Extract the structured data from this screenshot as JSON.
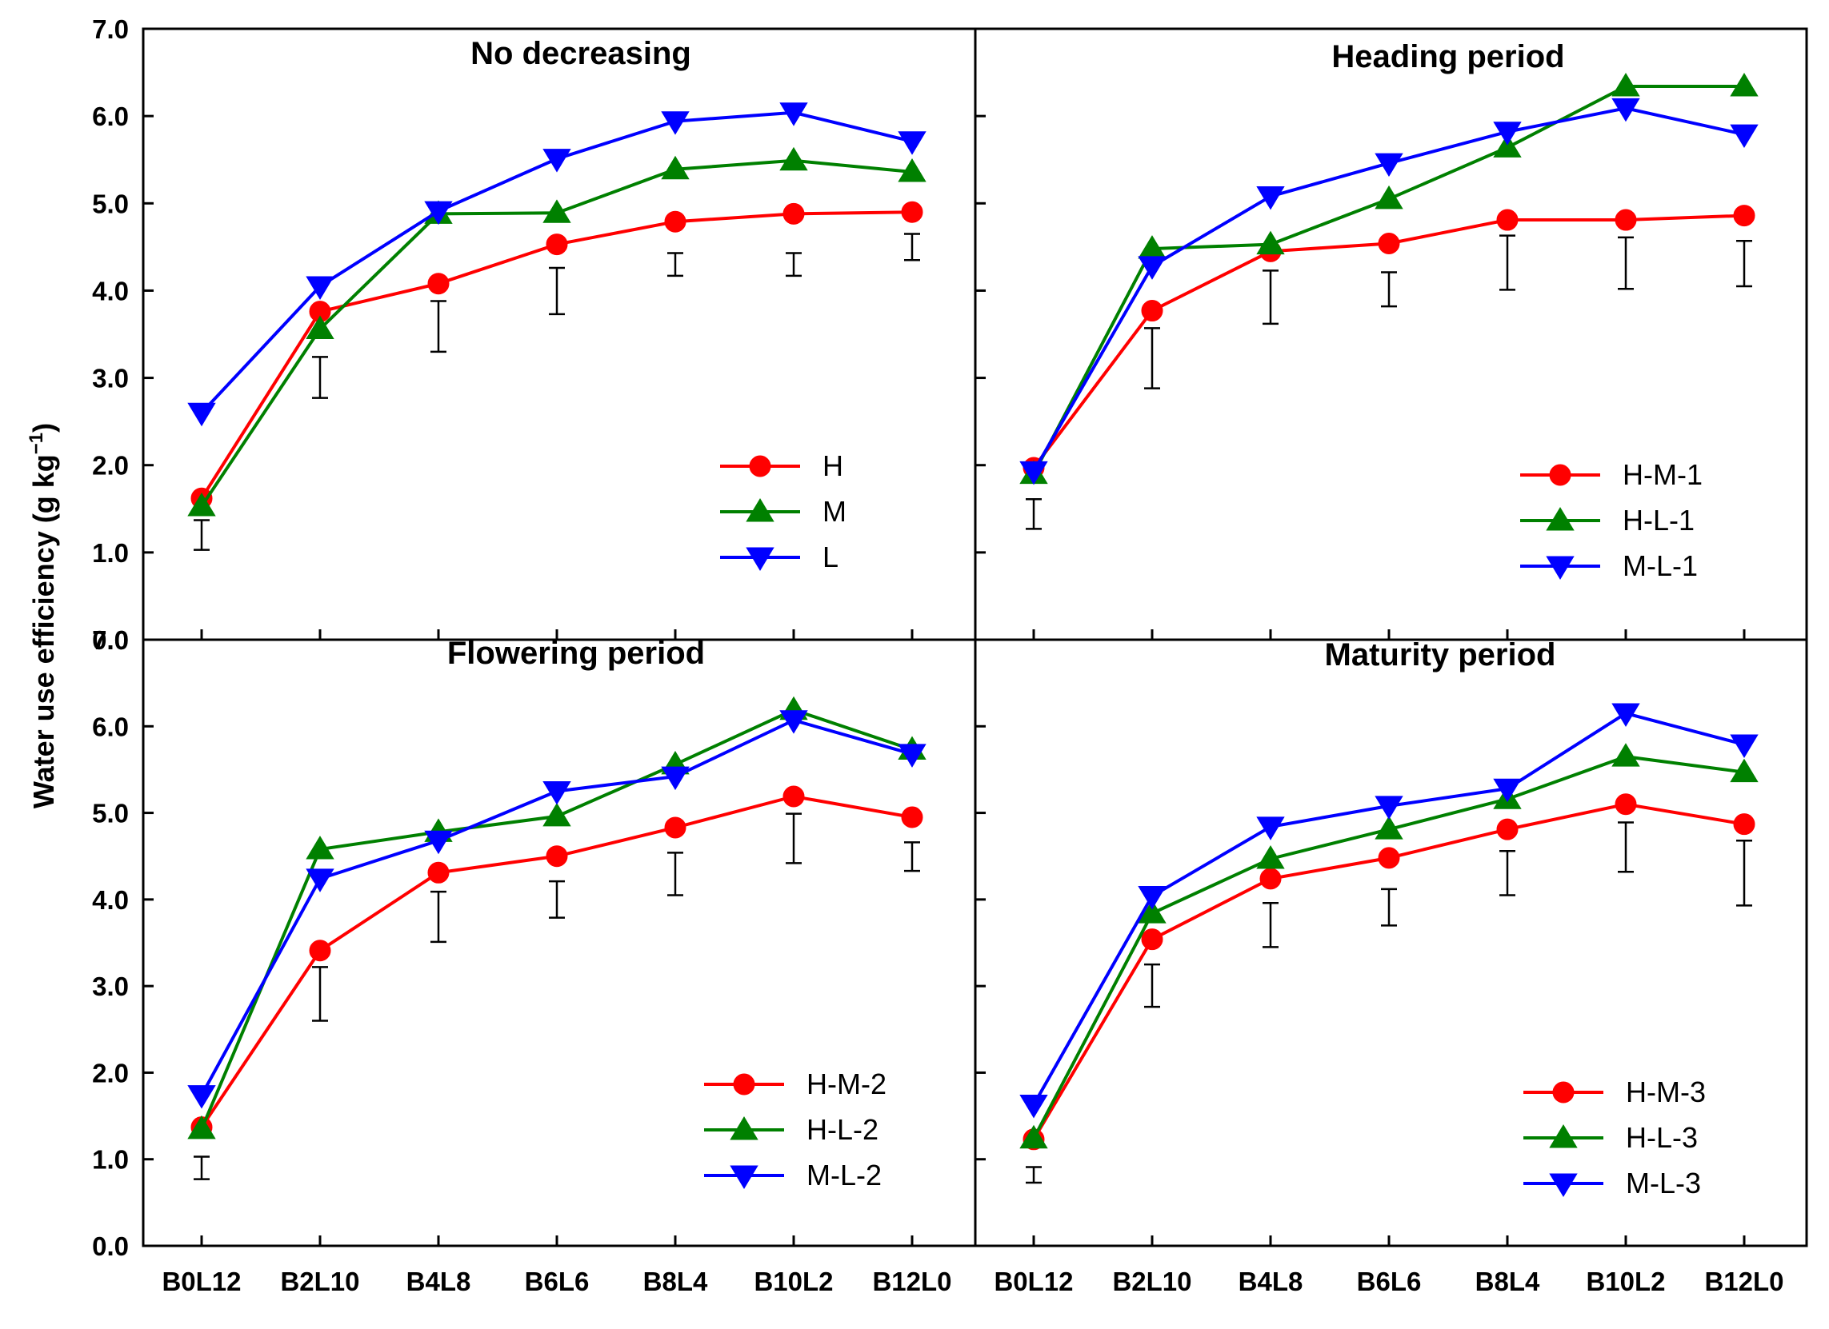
{
  "figure": {
    "ylabel": "Water use efficiency (g kg",
    "ylabel_sup": "−1",
    "ylabel_close": ")"
  },
  "chart_data": [
    {
      "type": "line",
      "title": "No decreasing",
      "categories": [
        "B0L12",
        "B2L10",
        "B4L8",
        "B6L6",
        "B8L4",
        "B10L2",
        "B12L0"
      ],
      "ylim": [
        0,
        7
      ],
      "yticks": [
        "0.0",
        "1.0",
        "2.0",
        "3.0",
        "4.0",
        "5.0",
        "6.0",
        "7.0"
      ],
      "legend_position": "bottom-right",
      "series": [
        {
          "name": "H",
          "color": "#ff0000",
          "marker": "circle",
          "values": [
            1.62,
            3.76,
            4.08,
            4.53,
            4.79,
            4.88,
            4.9
          ]
        },
        {
          "name": "M",
          "color": "#008000",
          "marker": "triangle-up",
          "values": [
            1.53,
            3.56,
            4.88,
            4.89,
            5.39,
            5.49,
            5.36
          ]
        },
        {
          "name": "L",
          "color": "#0000ff",
          "marker": "triangle-down",
          "values": [
            2.6,
            4.05,
            4.91,
            5.51,
            5.94,
            6.04,
            5.71
          ]
        }
      ],
      "error_bars": [
        {
          "low": 1.03,
          "high": 1.37
        },
        {
          "low": 2.77,
          "high": 3.24
        },
        {
          "low": 3.3,
          "high": 3.88
        },
        {
          "low": 3.73,
          "high": 4.26
        },
        {
          "low": 4.17,
          "high": 4.43
        },
        {
          "low": 4.17,
          "high": 4.43
        },
        {
          "low": 4.35,
          "high": 4.65
        }
      ]
    },
    {
      "type": "line",
      "title": "Heading period",
      "categories": [
        "B0L12",
        "B2L10",
        "B4L8",
        "B6L6",
        "B8L4",
        "B10L2",
        "B12L0"
      ],
      "ylim": [
        0,
        7
      ],
      "yticks": [
        "0.0",
        "1.0",
        "2.0",
        "3.0",
        "4.0",
        "5.0",
        "6.0",
        "7.0"
      ],
      "legend_position": "bottom-right",
      "series": [
        {
          "name": "H-M-1",
          "color": "#ff0000",
          "marker": "circle",
          "values": [
            1.97,
            3.77,
            4.45,
            4.54,
            4.81,
            4.81,
            4.86
          ]
        },
        {
          "name": "H-L-1",
          "color": "#008000",
          "marker": "triangle-up",
          "values": [
            1.9,
            4.48,
            4.53,
            5.05,
            5.64,
            6.34,
            6.34
          ]
        },
        {
          "name": "M-L-1",
          "color": "#0000ff",
          "marker": "triangle-down",
          "values": [
            1.93,
            4.28,
            5.08,
            5.46,
            5.82,
            6.09,
            5.79
          ]
        }
      ],
      "error_bars": [
        {
          "low": 1.27,
          "high": 1.61
        },
        {
          "low": 2.88,
          "high": 3.57
        },
        {
          "low": 3.62,
          "high": 4.23
        },
        {
          "low": 3.82,
          "high": 4.21
        },
        {
          "low": 4.01,
          "high": 4.63
        },
        {
          "low": 4.02,
          "high": 4.61
        },
        {
          "low": 4.05,
          "high": 4.57
        }
      ]
    },
    {
      "type": "line",
      "title": "Flowering period",
      "categories": [
        "B0L12",
        "B2L10",
        "B4L8",
        "B6L6",
        "B8L4",
        "B10L2",
        "B12L0"
      ],
      "ylim": [
        0,
        7
      ],
      "yticks": [
        "0.0",
        "1.0",
        "2.0",
        "3.0",
        "4.0",
        "5.0",
        "6.0",
        "7.0"
      ],
      "legend_position": "bottom-right",
      "series": [
        {
          "name": "H-M-2",
          "color": "#ff0000",
          "marker": "circle",
          "values": [
            1.37,
            3.41,
            4.31,
            4.5,
            4.83,
            5.19,
            4.95
          ]
        },
        {
          "name": "H-L-2",
          "color": "#008000",
          "marker": "triangle-up",
          "values": [
            1.35,
            4.58,
            4.78,
            4.96,
            5.56,
            6.19,
            5.73
          ]
        },
        {
          "name": "M-L-2",
          "color": "#0000ff",
          "marker": "triangle-down",
          "values": [
            1.74,
            4.24,
            4.68,
            5.25,
            5.42,
            6.07,
            5.68
          ]
        }
      ],
      "error_bars": [
        {
          "low": 0.77,
          "high": 1.03
        },
        {
          "low": 2.6,
          "high": 3.22
        },
        {
          "low": 3.51,
          "high": 4.09
        },
        {
          "low": 3.79,
          "high": 4.21
        },
        {
          "low": 4.05,
          "high": 4.54
        },
        {
          "low": 4.42,
          "high": 4.99
        },
        {
          "low": 4.33,
          "high": 4.66
        }
      ]
    },
    {
      "type": "line",
      "title": "Maturity period",
      "categories": [
        "B0L12",
        "B2L10",
        "B4L8",
        "B6L6",
        "B8L4",
        "B10L2",
        "B12L0"
      ],
      "ylim": [
        0,
        7
      ],
      "yticks": [
        "0.0",
        "1.0",
        "2.0",
        "3.0",
        "4.0",
        "5.0",
        "6.0",
        "7.0"
      ],
      "legend_position": "bottom-right",
      "series": [
        {
          "name": "H-M-3",
          "color": "#ff0000",
          "marker": "circle",
          "values": [
            1.23,
            3.54,
            4.24,
            4.48,
            4.81,
            5.1,
            4.87
          ]
        },
        {
          "name": "H-L-3",
          "color": "#008000",
          "marker": "triangle-up",
          "values": [
            1.24,
            3.84,
            4.47,
            4.81,
            5.16,
            5.65,
            5.47
          ]
        },
        {
          "name": "M-L-3",
          "color": "#0000ff",
          "marker": "triangle-down",
          "values": [
            1.63,
            4.04,
            4.84,
            5.08,
            5.28,
            6.15,
            5.79
          ]
        }
      ],
      "error_bars": [
        {
          "low": 0.73,
          "high": 0.91
        },
        {
          "low": 2.76,
          "high": 3.25
        },
        {
          "low": 3.45,
          "high": 3.96
        },
        {
          "low": 3.7,
          "high": 4.12
        },
        {
          "low": 4.05,
          "high": 4.56
        },
        {
          "low": 4.32,
          "high": 4.89
        },
        {
          "low": 3.93,
          "high": 4.68
        }
      ]
    }
  ]
}
